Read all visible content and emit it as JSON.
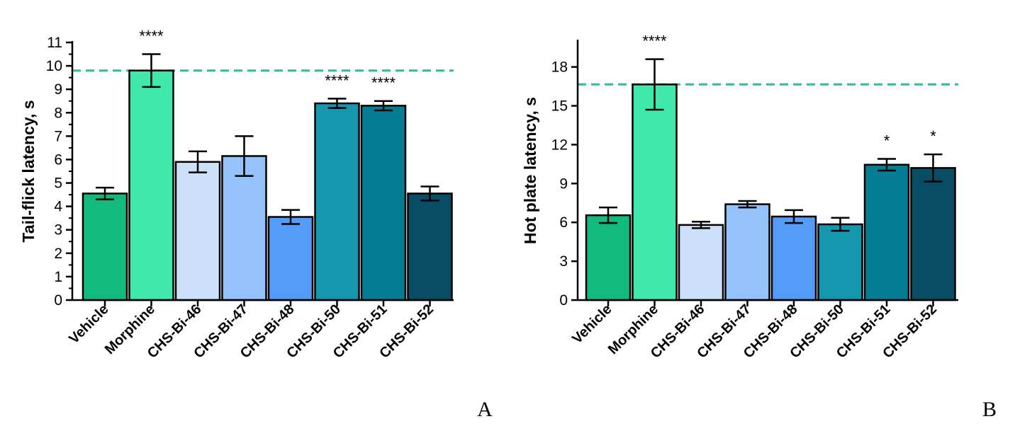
{
  "chart_data": [
    {
      "type": "bar",
      "panel_label": "A",
      "ylabel": "Tail-flick latency, s",
      "xlabel": "",
      "ylim": [
        0,
        11
      ],
      "yticks": [
        0,
        1,
        2,
        3,
        4,
        5,
        6,
        7,
        8,
        9,
        10,
        11
      ],
      "minor_ticks": true,
      "categories": [
        "Vehicle",
        "Morphine",
        "CHS-Bi-46",
        "CHS-Bi-47",
        "CHS-Bi-48",
        "CHS-Bi-50",
        "CHS-Bi-51",
        "CHS-Bi-52"
      ],
      "values": [
        4.55,
        9.8,
        5.9,
        6.15,
        3.55,
        8.4,
        8.3,
        4.55
      ],
      "errors": [
        0.25,
        0.7,
        0.45,
        0.85,
        0.3,
        0.2,
        0.2,
        0.3
      ],
      "significance": [
        "",
        "****",
        "",
        "",
        "",
        "****",
        "****",
        ""
      ],
      "reference_line": 9.8,
      "reference_color": "#2dbf8a",
      "colors": [
        "#12bb7d",
        "#40e8ab",
        "#cce0fa",
        "#94c2f9",
        "#549cf8",
        "#1597b0",
        "#077c95",
        "#084d63"
      ]
    },
    {
      "type": "bar",
      "panel_label": "B",
      "ylabel": "Hot plate latency, s",
      "xlabel": "",
      "ylim": [
        0,
        20
      ],
      "yticks": [
        0,
        3,
        6,
        9,
        12,
        15,
        18
      ],
      "minor_ticks": false,
      "categories": [
        "Vehicle",
        "Morphine",
        "CHS-Bi-46",
        "CHS-Bi-47",
        "CHS-Bi-48",
        "CHS-Bi-50",
        "CHS-Bi-51",
        "CHS-Bi-52"
      ],
      "values": [
        6.55,
        16.65,
        5.8,
        7.4,
        6.45,
        5.85,
        10.45,
        10.2
      ],
      "errors": [
        0.6,
        1.95,
        0.25,
        0.25,
        0.5,
        0.5,
        0.45,
        1.05
      ],
      "significance": [
        "",
        "****",
        "",
        "",
        "",
        "",
        "*",
        "*"
      ],
      "reference_line": 16.65,
      "reference_color": "#2dbf8a",
      "colors": [
        "#12bb7d",
        "#40e8ab",
        "#cce0fa",
        "#94c2f9",
        "#549cf8",
        "#1597b0",
        "#077c95",
        "#084d63"
      ]
    }
  ]
}
